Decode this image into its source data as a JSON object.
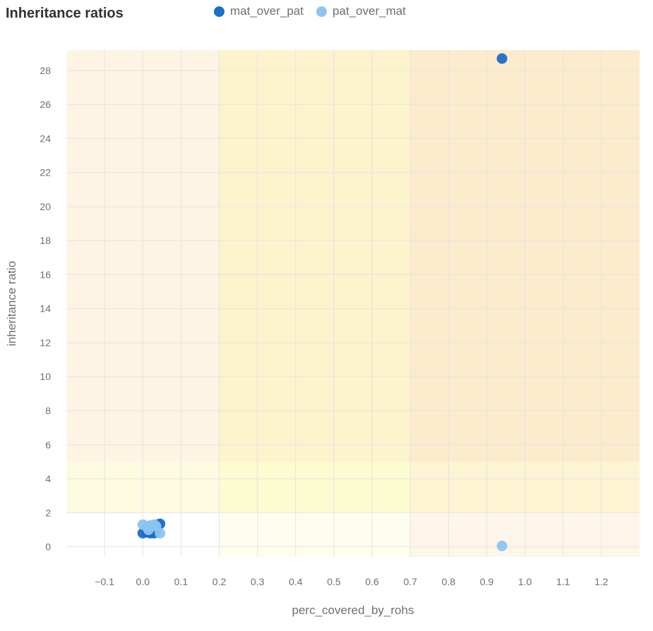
{
  "chart_data": {
    "type": "scatter",
    "title": "Inheritance ratios",
    "xlabel": "perc_covered_by_rohs",
    "ylabel": "inheritance ratio",
    "xlim": [
      -0.2,
      1.3
    ],
    "ylim": [
      -0.6,
      29.2
    ],
    "x_ticks": [
      "−0.1",
      "0.0",
      "0.1",
      "0.2",
      "0.3",
      "0.4",
      "0.5",
      "0.6",
      "0.7",
      "0.8",
      "0.9",
      "1.0",
      "1.1",
      "1.2"
    ],
    "x_tick_values": [
      -0.1,
      0.0,
      0.1,
      0.2,
      0.3,
      0.4,
      0.5,
      0.6,
      0.7,
      0.8,
      0.9,
      1.0,
      1.1,
      1.2
    ],
    "y_ticks": [
      "0",
      "2",
      "4",
      "6",
      "8",
      "10",
      "12",
      "14",
      "16",
      "18",
      "20",
      "22",
      "24",
      "26",
      "28"
    ],
    "y_tick_values": [
      0,
      2,
      4,
      6,
      8,
      10,
      12,
      14,
      16,
      18,
      20,
      22,
      24,
      26,
      28
    ],
    "grid": true,
    "legend_position": "top",
    "background_bands": [
      {
        "x": [
          -0.2,
          0.2
        ],
        "y": [
          5,
          29.2
        ],
        "color": "#fdf4e3"
      },
      {
        "x": [
          0.2,
          0.7
        ],
        "y": [
          5,
          29.2
        ],
        "color": "#fdf3cc"
      },
      {
        "x": [
          0.7,
          1.3
        ],
        "y": [
          5,
          29.2
        ],
        "color": "#fcebcd"
      },
      {
        "x": [
          -0.2,
          0.2
        ],
        "y": [
          2,
          5
        ],
        "color": "#fdfbe0"
      },
      {
        "x": [
          0.2,
          0.7
        ],
        "y": [
          2,
          5
        ],
        "color": "#fdfcd0"
      },
      {
        "x": [
          0.7,
          1.3
        ],
        "y": [
          2,
          5
        ],
        "color": "#fcf4d3"
      },
      {
        "x": [
          0.2,
          0.7
        ],
        "y": [
          -0.6,
          2
        ],
        "color": "#fefdf0"
      },
      {
        "x": [
          0.7,
          1.3
        ],
        "y": [
          -0.6,
          2
        ],
        "color": "#fdf6e8"
      }
    ],
    "series": [
      {
        "name": "mat_over_pat",
        "color": "#1a6fc9",
        "points": [
          {
            "x": 0.0,
            "y": 0.8
          },
          {
            "x": 0.01,
            "y": 0.85
          },
          {
            "x": 0.02,
            "y": 0.8
          },
          {
            "x": 0.025,
            "y": 0.9
          },
          {
            "x": 0.03,
            "y": 0.8
          },
          {
            "x": 0.04,
            "y": 1.3
          },
          {
            "x": 0.045,
            "y": 1.35
          },
          {
            "x": 0.02,
            "y": 1.2
          },
          {
            "x": 0.035,
            "y": 1.0
          },
          {
            "x": 0.94,
            "y": 28.7
          }
        ]
      },
      {
        "name": "pat_over_mat",
        "color": "#8cc4f0",
        "points": [
          {
            "x": 0.0,
            "y": 1.3
          },
          {
            "x": 0.01,
            "y": 1.2
          },
          {
            "x": 0.02,
            "y": 1.25
          },
          {
            "x": 0.03,
            "y": 1.3
          },
          {
            "x": 0.035,
            "y": 1.2
          },
          {
            "x": 0.045,
            "y": 0.8
          },
          {
            "x": 0.015,
            "y": 1.0
          },
          {
            "x": 0.94,
            "y": 0.05
          }
        ]
      }
    ]
  }
}
